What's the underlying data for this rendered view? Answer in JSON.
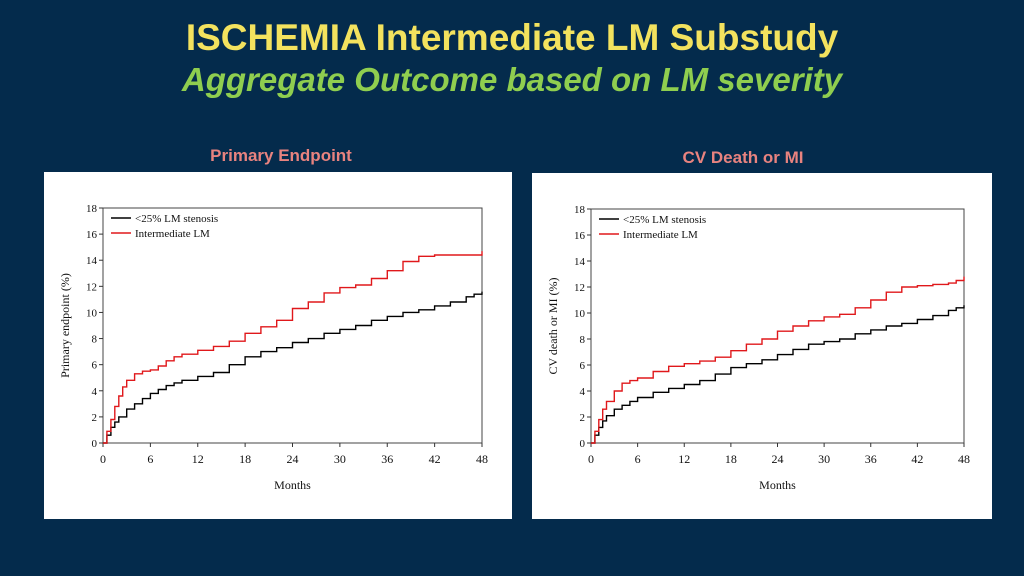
{
  "header": {
    "title": "ISCHEMIA Intermediate LM Substudy",
    "subtitle": "Aggregate Outcome based on LM severity"
  },
  "colors": {
    "background": "#042b4c",
    "title": "#f3e25e",
    "subtitle": "#8fce4f",
    "panel_title": "#e8837f",
    "series_low": "#000000",
    "series_intermediate": "#e0181b"
  },
  "chart_data": [
    {
      "type": "line",
      "title": "Primary Endpoint",
      "xlabel": "Months",
      "ylabel": "Primary endpoint (%)",
      "xlim": [
        0,
        48
      ],
      "ylim": [
        0,
        18
      ],
      "xticks": [
        "0",
        "6",
        "12",
        "18",
        "24",
        "30",
        "36",
        "42",
        "48"
      ],
      "yticks": [
        "0",
        "2",
        "4",
        "6",
        "8",
        "10",
        "12",
        "14",
        "16",
        "18"
      ],
      "legend": [
        "<25% LM stenosis",
        "Intermediate LM"
      ],
      "series": [
        {
          "name": "<25% LM stenosis",
          "x": [
            0,
            0.5,
            1,
            1.5,
            2,
            3,
            4,
            5,
            6,
            7,
            8,
            9,
            10,
            12,
            14,
            16,
            18,
            20,
            22,
            24,
            26,
            28,
            30,
            32,
            34,
            36,
            38,
            40,
            42,
            44,
            46,
            47,
            48
          ],
          "values": [
            0,
            0.6,
            1.2,
            1.6,
            2.0,
            2.6,
            3.0,
            3.4,
            3.8,
            4.1,
            4.4,
            4.6,
            4.8,
            5.1,
            5.4,
            6.0,
            6.6,
            7.0,
            7.3,
            7.7,
            8.0,
            8.4,
            8.7,
            9.0,
            9.4,
            9.7,
            10.0,
            10.2,
            10.5,
            10.8,
            11.2,
            11.4,
            11.6
          ]
        },
        {
          "name": "Intermediate LM",
          "x": [
            0,
            0.5,
            1,
            1.5,
            2,
            2.5,
            3,
            4,
            5,
            6,
            7,
            8,
            9,
            10,
            12,
            14,
            16,
            18,
            20,
            22,
            24,
            26,
            28,
            30,
            32,
            34,
            36,
            38,
            40,
            42,
            44,
            46,
            47.8,
            48
          ],
          "values": [
            0,
            0.9,
            1.8,
            2.8,
            3.6,
            4.3,
            4.8,
            5.3,
            5.5,
            5.6,
            5.9,
            6.3,
            6.6,
            6.8,
            7.1,
            7.4,
            7.8,
            8.4,
            8.9,
            9.4,
            10.3,
            10.8,
            11.5,
            11.9,
            12.1,
            12.6,
            13.2,
            13.9,
            14.3,
            14.4,
            14.4,
            14.4,
            14.4,
            14.7
          ]
        }
      ]
    },
    {
      "type": "line",
      "title": "CV Death or MI",
      "xlabel": "Months",
      "ylabel": "CV death or MI (%)",
      "xlim": [
        0,
        48
      ],
      "ylim": [
        0,
        18
      ],
      "xticks": [
        "0",
        "6",
        "12",
        "18",
        "24",
        "30",
        "36",
        "42",
        "48"
      ],
      "yticks": [
        "0",
        "2",
        "4",
        "6",
        "8",
        "10",
        "12",
        "14",
        "16",
        "18"
      ],
      "legend": [
        "<25% LM stenosis",
        "Intermediate LM"
      ],
      "series": [
        {
          "name": "<25% LM stenosis",
          "x": [
            0,
            0.5,
            1,
            1.5,
            2,
            3,
            4,
            5,
            6,
            8,
            10,
            12,
            14,
            16,
            18,
            20,
            22,
            24,
            26,
            28,
            30,
            32,
            34,
            36,
            38,
            40,
            42,
            44,
            46,
            47,
            48
          ],
          "values": [
            0,
            0.6,
            1.2,
            1.7,
            2.1,
            2.6,
            2.9,
            3.2,
            3.5,
            3.9,
            4.2,
            4.5,
            4.8,
            5.3,
            5.8,
            6.1,
            6.4,
            6.8,
            7.2,
            7.6,
            7.8,
            8.0,
            8.4,
            8.7,
            9.0,
            9.2,
            9.5,
            9.8,
            10.2,
            10.4,
            10.6
          ]
        },
        {
          "name": "Intermediate LM",
          "x": [
            0,
            0.5,
            1,
            1.5,
            2,
            3,
            4,
            5,
            6,
            8,
            10,
            12,
            14,
            16,
            18,
            20,
            22,
            24,
            26,
            28,
            30,
            32,
            34,
            36,
            38,
            40,
            42,
            44,
            46,
            47,
            48
          ],
          "values": [
            0,
            0.9,
            1.8,
            2.6,
            3.2,
            4.0,
            4.6,
            4.8,
            5.0,
            5.5,
            5.9,
            6.1,
            6.3,
            6.6,
            7.1,
            7.6,
            8.0,
            8.6,
            9.0,
            9.4,
            9.7,
            9.9,
            10.4,
            11.0,
            11.6,
            12.0,
            12.1,
            12.2,
            12.3,
            12.5,
            12.8
          ]
        }
      ]
    }
  ]
}
